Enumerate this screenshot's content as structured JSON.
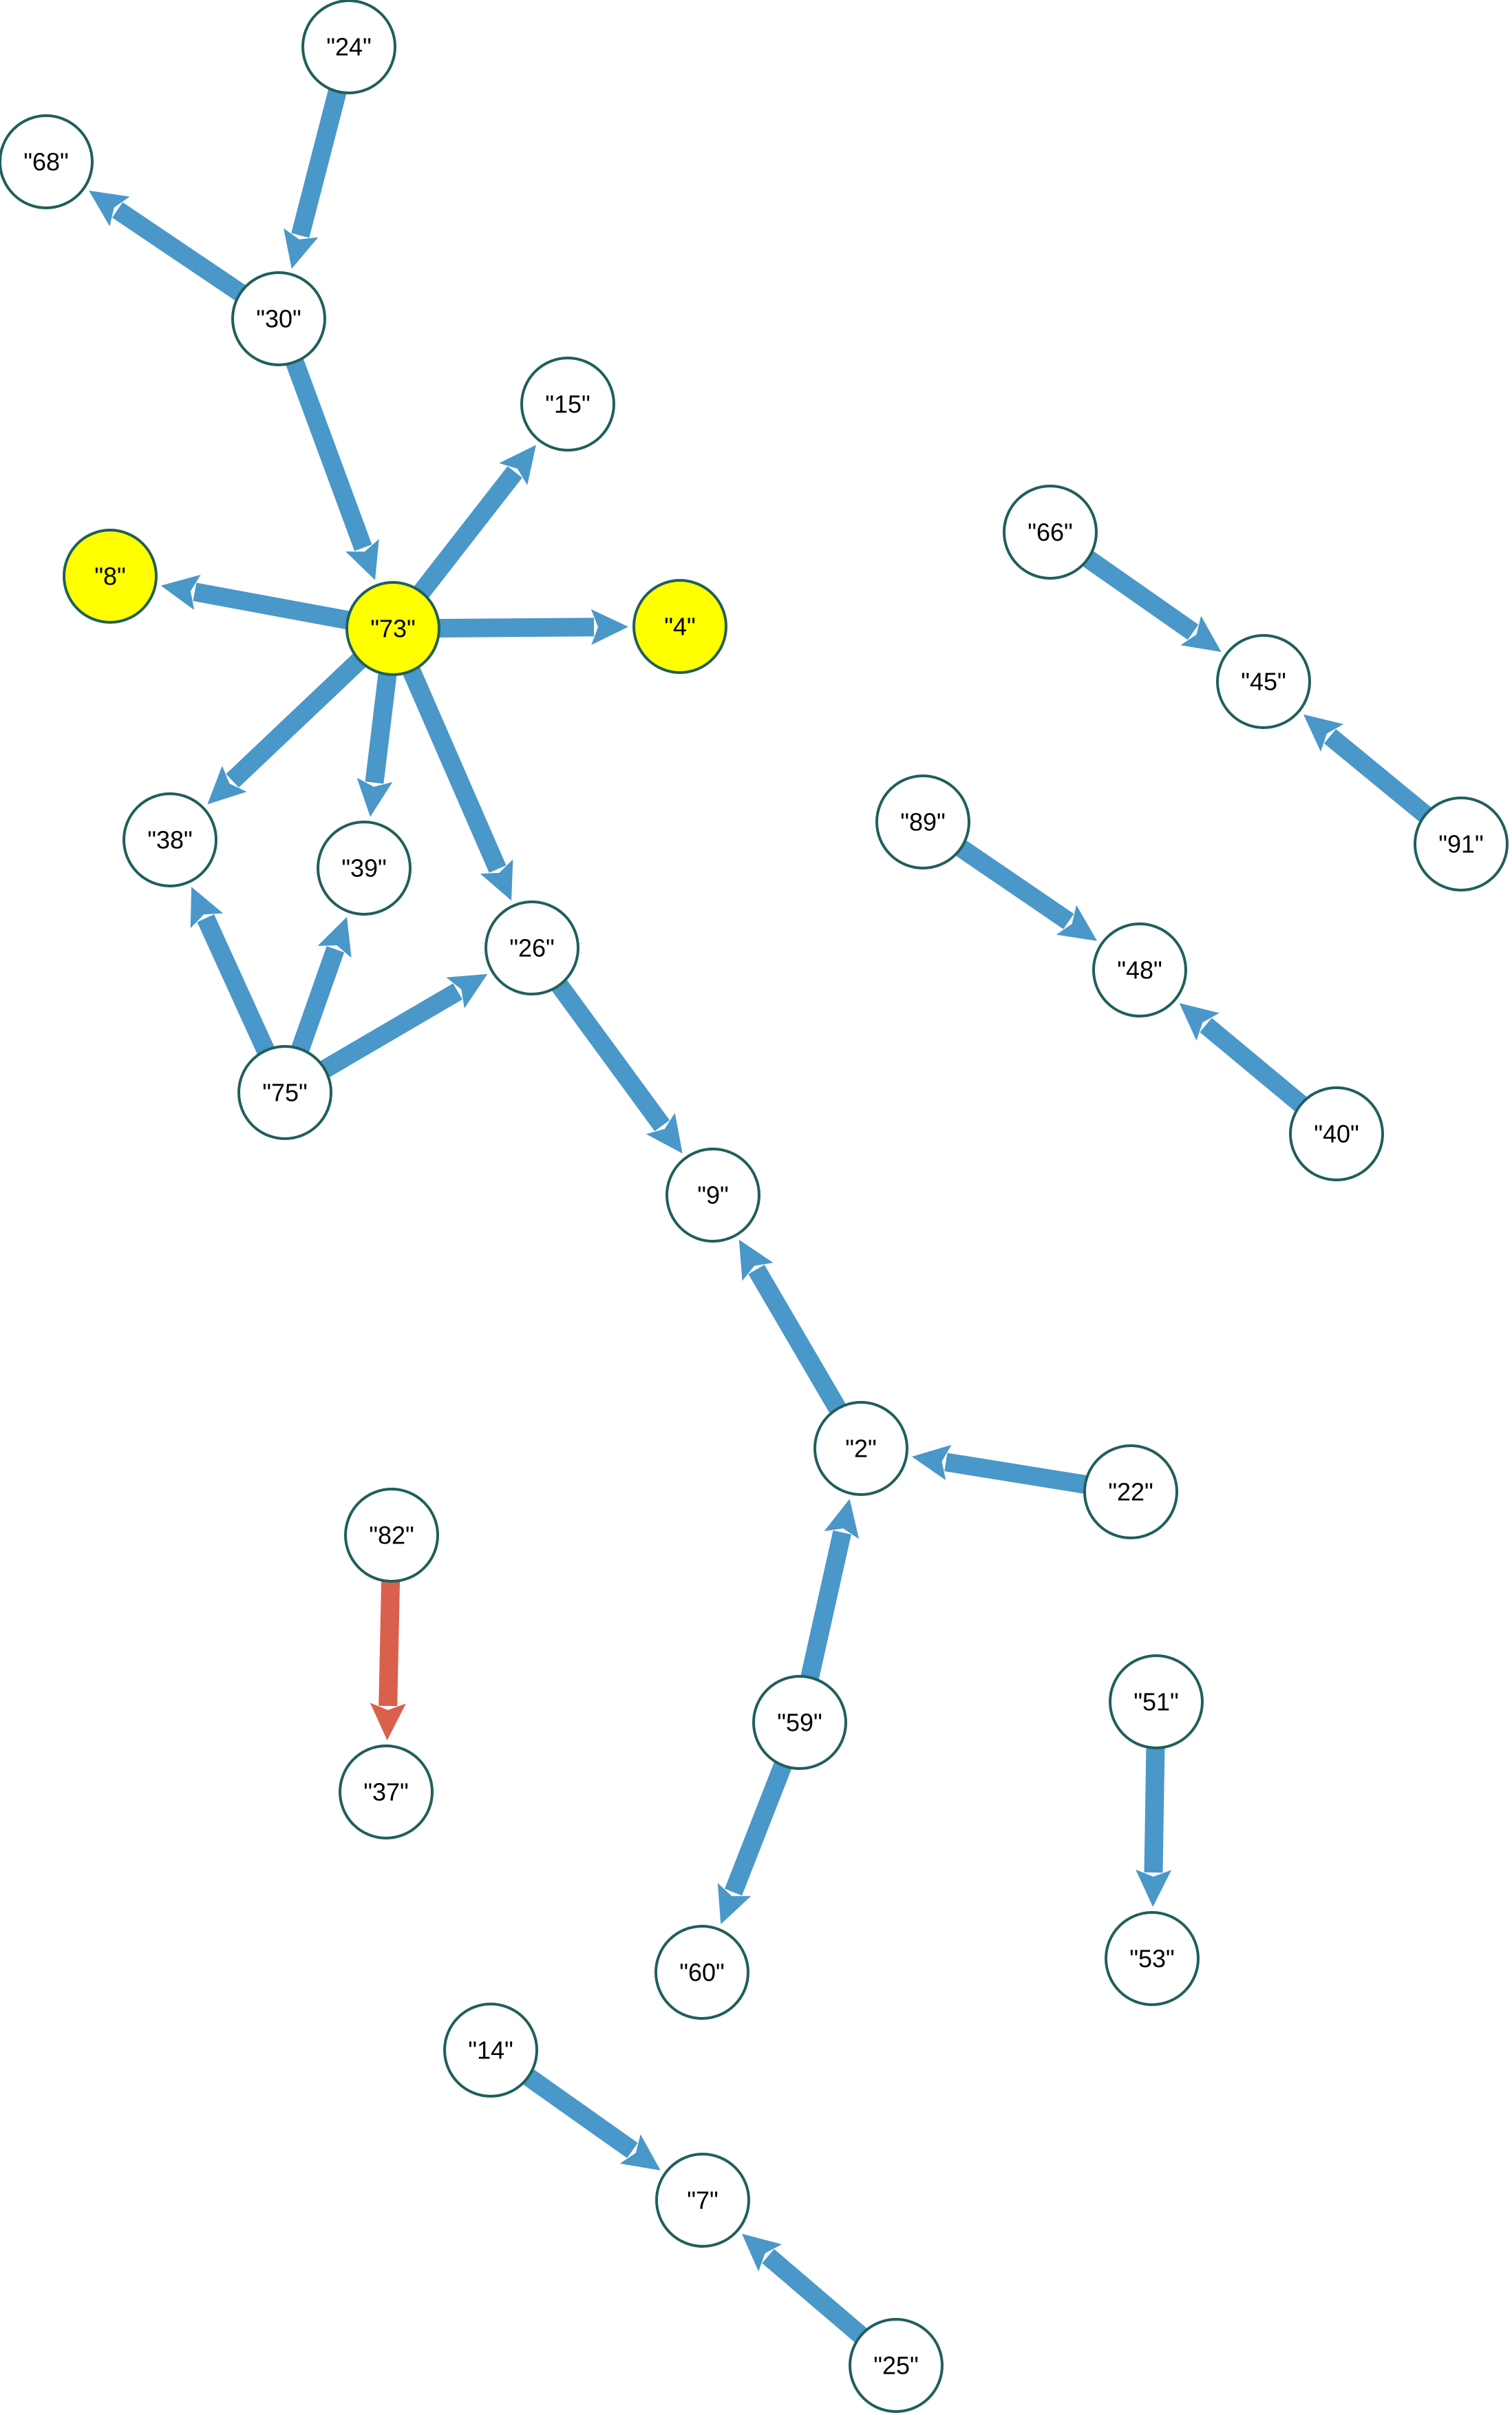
{
  "colors": {
    "edge_default": "#4a97c9",
    "edge_highlight": "#d9604c",
    "node_fill": "#ffffff",
    "node_highlight_fill": "#ffff00",
    "node_stroke": "#1f5f5b"
  },
  "nodes": [
    {
      "id": "24",
      "label": "\"24\""
    },
    {
      "id": "68",
      "label": "\"68\""
    },
    {
      "id": "30",
      "label": "\"30\""
    },
    {
      "id": "15",
      "label": "\"15\""
    },
    {
      "id": "66",
      "label": "\"66\""
    },
    {
      "id": "8",
      "label": "\"8\"",
      "highlight": true
    },
    {
      "id": "73",
      "label": "\"73\"",
      "highlight": true
    },
    {
      "id": "4",
      "label": "\"4\"",
      "highlight": true
    },
    {
      "id": "45",
      "label": "\"45\""
    },
    {
      "id": "89",
      "label": "\"89\""
    },
    {
      "id": "91",
      "label": "\"91\""
    },
    {
      "id": "38",
      "label": "\"38\""
    },
    {
      "id": "39",
      "label": "\"39\""
    },
    {
      "id": "26",
      "label": "\"26\""
    },
    {
      "id": "48",
      "label": "\"48\""
    },
    {
      "id": "75",
      "label": "\"75\""
    },
    {
      "id": "40",
      "label": "\"40\""
    },
    {
      "id": "9",
      "label": "\"9\""
    },
    {
      "id": "2",
      "label": "\"2\""
    },
    {
      "id": "22",
      "label": "\"22\""
    },
    {
      "id": "82",
      "label": "\"82\""
    },
    {
      "id": "51",
      "label": "\"51\""
    },
    {
      "id": "59",
      "label": "\"59\""
    },
    {
      "id": "37",
      "label": "\"37\""
    },
    {
      "id": "60",
      "label": "\"60\""
    },
    {
      "id": "53",
      "label": "\"53\""
    },
    {
      "id": "14",
      "label": "\"14\""
    },
    {
      "id": "7",
      "label": "\"7\""
    },
    {
      "id": "25",
      "label": "\"25\""
    }
  ],
  "edges": [
    {
      "from": "24",
      "to": "30"
    },
    {
      "from": "30",
      "to": "68"
    },
    {
      "from": "30",
      "to": "73"
    },
    {
      "from": "73",
      "to": "15"
    },
    {
      "from": "73",
      "to": "8"
    },
    {
      "from": "73",
      "to": "4"
    },
    {
      "from": "73",
      "to": "38"
    },
    {
      "from": "73",
      "to": "39"
    },
    {
      "from": "73",
      "to": "26"
    },
    {
      "from": "75",
      "to": "38"
    },
    {
      "from": "75",
      "to": "39"
    },
    {
      "from": "75",
      "to": "26"
    },
    {
      "from": "26",
      "to": "9"
    },
    {
      "from": "2",
      "to": "9"
    },
    {
      "from": "22",
      "to": "2"
    },
    {
      "from": "59",
      "to": "2"
    },
    {
      "from": "59",
      "to": "60"
    },
    {
      "from": "66",
      "to": "45"
    },
    {
      "from": "91",
      "to": "45"
    },
    {
      "from": "89",
      "to": "48"
    },
    {
      "from": "40",
      "to": "48"
    },
    {
      "from": "82",
      "to": "37",
      "highlight": true
    },
    {
      "from": "51",
      "to": "53"
    },
    {
      "from": "14",
      "to": "7"
    },
    {
      "from": "25",
      "to": "7"
    }
  ]
}
